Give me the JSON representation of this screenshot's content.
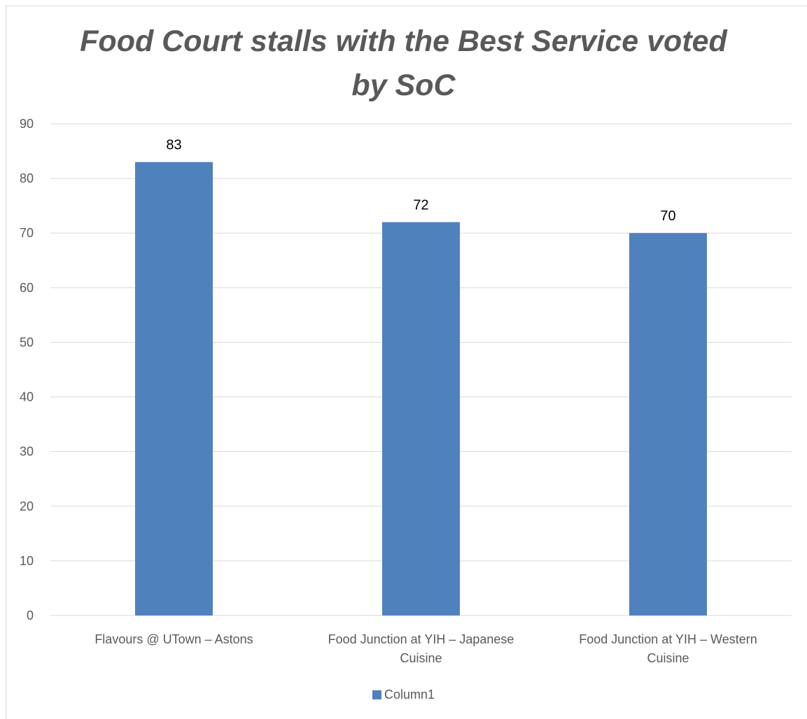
{
  "chart_data": {
    "type": "bar",
    "title": "Food Court stalls with the Best Service voted\nby SoC",
    "categories": [
      [
        "Flavours @ UTown  – Astons"
      ],
      [
        "Food Junction at YIH – Japanese",
        "Cuisine"
      ],
      [
        "Food Junction at YIH – Western",
        "Cuisine"
      ]
    ],
    "series": [
      {
        "name": "Column1",
        "values": [
          83,
          72,
          70
        ]
      }
    ],
    "data_labels": [
      "83",
      "72",
      "70"
    ],
    "ylim": [
      0,
      90
    ],
    "yticks": [
      0,
      10,
      20,
      30,
      40,
      50,
      60,
      70,
      80,
      90
    ],
    "grid": true,
    "legend_position": "bottom",
    "bar_color": "#4f81bd",
    "grid_color": "#d9d9d9",
    "text_color": "#595959"
  }
}
